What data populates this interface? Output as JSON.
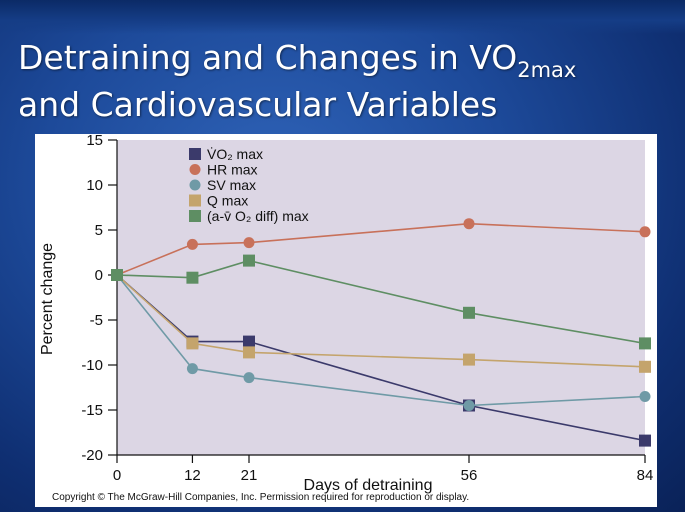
{
  "slide": {
    "title_part1": "Detraining and Changes in VO",
    "title_sub": "2max",
    "title_line2": "and Cardiovascular Variables"
  },
  "chart_data": {
    "type": "line",
    "title": "",
    "xlabel": "Days of detraining",
    "ylabel": "Percent change",
    "x": [
      0,
      12,
      21,
      56,
      84
    ],
    "x_tick_labels": [
      "0",
      "12",
      "21",
      "56",
      "84"
    ],
    "ylim": [
      -20,
      15
    ],
    "y_ticks": [
      15,
      10,
      5,
      0,
      -5,
      -10,
      -15,
      -20
    ],
    "y_tick_labels": [
      "15",
      "10",
      "5",
      "0",
      "-5",
      "-10",
      "-15",
      "-20"
    ],
    "legend_position": "top-left",
    "series": [
      {
        "name": "VO2 max",
        "legend_label": "V̇O₂ max",
        "color": "#3b3a6b",
        "marker": "square",
        "values": [
          0,
          -7.4,
          -7.4,
          -14.5,
          -18.4
        ]
      },
      {
        "name": "HR max",
        "legend_label": "HR max",
        "color": "#c8715a",
        "marker": "circle",
        "values": [
          0,
          3.4,
          3.6,
          5.7,
          4.8
        ]
      },
      {
        "name": "SV max",
        "legend_label": "SV max",
        "color": "#6f9aa6",
        "marker": "circle",
        "values": [
          0,
          -10.4,
          -11.4,
          -14.5,
          -13.5
        ]
      },
      {
        "name": "Q max",
        "legend_label": "Q max",
        "color": "#c4a46c",
        "marker": "square",
        "values": [
          0,
          -7.6,
          -8.6,
          -9.4,
          -10.2
        ]
      },
      {
        "name": "(a-v O2 diff) max",
        "legend_label": "(a-v̄ O₂ diff) max",
        "color": "#5e8e63",
        "marker": "square",
        "values": [
          0,
          -0.3,
          1.6,
          -4.2,
          -7.6
        ]
      }
    ]
  },
  "footer": {
    "copyright": "Copyright © The McGraw-Hill Companies, Inc. Permission required for reproduction or display."
  }
}
